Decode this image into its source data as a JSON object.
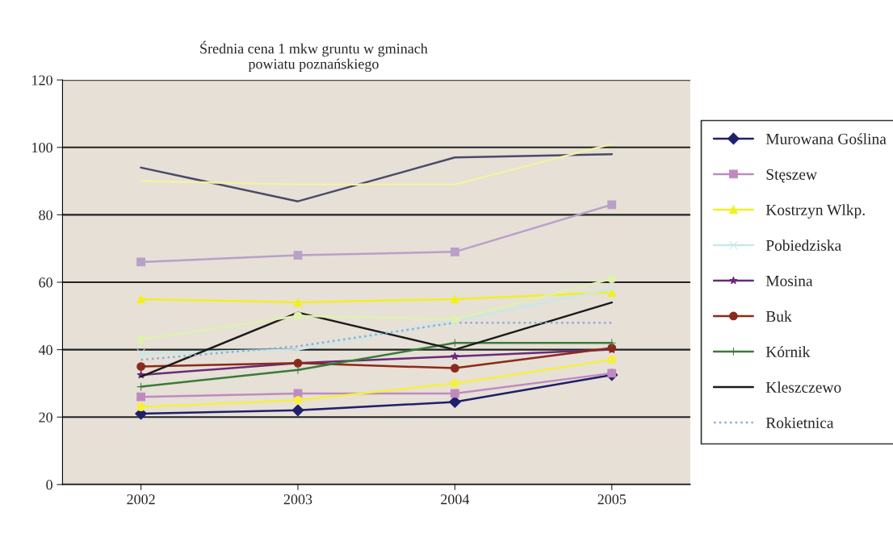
{
  "chart_data": {
    "type": "line",
    "title": "Średnia cena 1 mkw gruntu w gminach\npowiatu poznańskiego",
    "categories": [
      "2002",
      "2003",
      "2004",
      "2005"
    ],
    "series": [
      {
        "name": "Murowana Goślina",
        "color": "#1f1f6b",
        "marker": "diamond",
        "values": [
          21,
          22,
          24.5,
          32.5
        ]
      },
      {
        "name": "Stęszew",
        "color": "#c08ac0",
        "marker": "square",
        "values": [
          26,
          27,
          27,
          33
        ]
      },
      {
        "name": "Kostrzyn Wlkp.",
        "color": "#f0f020",
        "marker": "triangle",
        "values": [
          55,
          54,
          55,
          57
        ]
      },
      {
        "name": "Pobiedziska",
        "color": "#c8e8e8",
        "marker": "cross",
        "values": [
          39,
          40,
          48.5,
          58
        ]
      },
      {
        "name": "Mosina",
        "color": "#6a2a7a",
        "marker": "star",
        "values": [
          32.5,
          36,
          38,
          40
        ]
      },
      {
        "name": "Buk",
        "color": "#8b2a1a",
        "marker": "circle",
        "values": [
          35,
          36,
          34.5,
          40.5
        ]
      },
      {
        "name": "Kórnik",
        "color": "#3a7a3a",
        "marker": "plus",
        "values": [
          29,
          34,
          42,
          42
        ]
      },
      {
        "name": "Kleszczewo",
        "color": "#1a1a1a",
        "marker": "none",
        "values": [
          32,
          51,
          40,
          54
        ]
      },
      {
        "name": "Rokietnica",
        "color": "#8aaad8",
        "marker": "none",
        "line_style": "dotted",
        "values": [
          37,
          41,
          48,
          48
        ]
      },
      {
        "color": "#4a4a6a",
        "marker": "none",
        "values": [
          94,
          84,
          97,
          98
        ]
      },
      {
        "color": "#f4f0a8",
        "marker": "none",
        "values": [
          90,
          89,
          89,
          101
        ]
      },
      {
        "color": "#b8a0c8",
        "marker": "square",
        "values": [
          66,
          68,
          69,
          83
        ]
      },
      {
        "color": "#f4f040",
        "marker": "circle",
        "values": [
          23,
          25,
          30,
          37
        ]
      },
      {
        "color": "#e0f0b0",
        "marker": "circle",
        "values": [
          43,
          50,
          49,
          61
        ]
      }
    ],
    "ylim": [
      0,
      120
    ],
    "yticks": [
      0,
      20,
      40,
      60,
      80,
      100,
      120
    ],
    "grid": "y",
    "legend": "right",
    "line_style": "solid"
  }
}
